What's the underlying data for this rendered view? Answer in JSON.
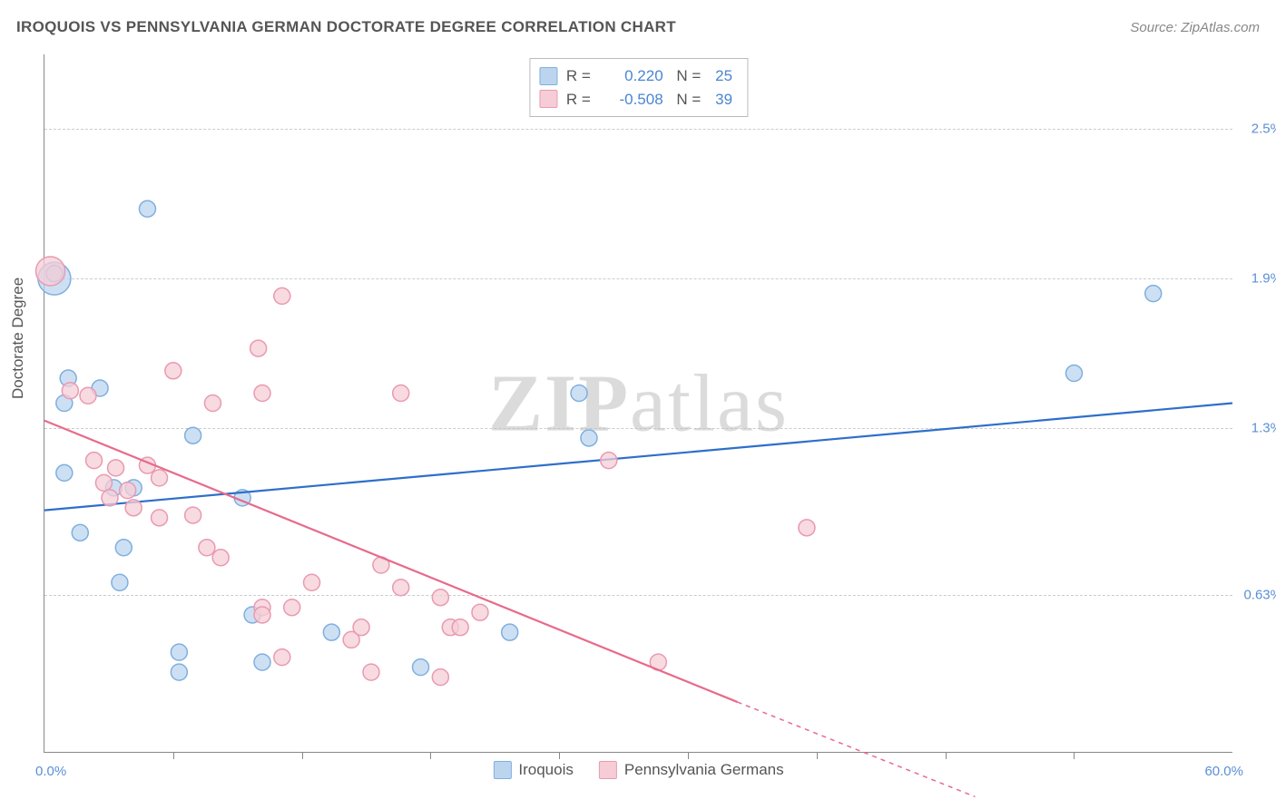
{
  "title": "IROQUOIS VS PENNSYLVANIA GERMAN DOCTORATE DEGREE CORRELATION CHART",
  "source_prefix": "Source: ",
  "source_site": "ZipAtlas.com",
  "watermark_a": "ZIP",
  "watermark_b": "atlas",
  "y_axis_label": "Doctorate Degree",
  "chart": {
    "type": "scatter",
    "background_color": "#ffffff",
    "grid_color": "#cccccc",
    "axis_color": "#888888",
    "xlim": [
      0,
      60
    ],
    "ylim": [
      0,
      2.8
    ],
    "x_ticks": [
      0,
      6.5,
      13,
      19.5,
      26,
      32.5,
      39,
      45.5,
      52
    ],
    "y_ticks": [
      0.63,
      1.3,
      1.9,
      2.5
    ],
    "y_tick_labels": [
      "0.63%",
      "1.3%",
      "1.9%",
      "2.5%"
    ],
    "x_min_label": "0.0%",
    "x_max_label": "60.0%",
    "series": [
      {
        "name": "Iroquois",
        "color_fill": "#bcd5ef",
        "color_stroke": "#7fafdf",
        "line_color": "#2e6fc9",
        "R": "0.220",
        "N": "25",
        "trend": {
          "x1": 0,
          "y1": 0.97,
          "x2": 60,
          "y2": 1.4
        },
        "points": [
          {
            "x": 0.5,
            "y": 1.9,
            "r": 18
          },
          {
            "x": 0.5,
            "y": 1.92
          },
          {
            "x": 5.2,
            "y": 2.18
          },
          {
            "x": 1.2,
            "y": 1.5
          },
          {
            "x": 2.8,
            "y": 1.46
          },
          {
            "x": 1.0,
            "y": 1.4
          },
          {
            "x": 1.0,
            "y": 1.12
          },
          {
            "x": 7.5,
            "y": 1.27
          },
          {
            "x": 56,
            "y": 1.84
          },
          {
            "x": 52,
            "y": 1.52
          },
          {
            "x": 27,
            "y": 1.44
          },
          {
            "x": 27.5,
            "y": 1.26
          },
          {
            "x": 3.5,
            "y": 1.06
          },
          {
            "x": 4.5,
            "y": 1.06
          },
          {
            "x": 10,
            "y": 1.02
          },
          {
            "x": 1.8,
            "y": 0.88
          },
          {
            "x": 4.0,
            "y": 0.82
          },
          {
            "x": 3.8,
            "y": 0.68
          },
          {
            "x": 10.5,
            "y": 0.55
          },
          {
            "x": 6.8,
            "y": 0.4
          },
          {
            "x": 6.8,
            "y": 0.32
          },
          {
            "x": 11,
            "y": 0.36
          },
          {
            "x": 14.5,
            "y": 0.48
          },
          {
            "x": 19,
            "y": 0.34
          },
          {
            "x": 23.5,
            "y": 0.48
          }
        ]
      },
      {
        "name": "Pennsylvania Germans",
        "color_fill": "#f6cdd7",
        "color_stroke": "#e99ab0",
        "line_color": "#e86a8a",
        "R": "-0.508",
        "N": "39",
        "trend": {
          "x1": 0,
          "y1": 1.33,
          "x2": 35,
          "y2": 0.2
        },
        "trend_dash": {
          "x1": 35,
          "y1": 0.2,
          "x2": 47,
          "y2": -0.18
        },
        "points": [
          {
            "x": 0.3,
            "y": 1.93,
            "r": 16
          },
          {
            "x": 12,
            "y": 1.83
          },
          {
            "x": 10.8,
            "y": 1.62
          },
          {
            "x": 6.5,
            "y": 1.53
          },
          {
            "x": 1.3,
            "y": 1.45
          },
          {
            "x": 2.2,
            "y": 1.43
          },
          {
            "x": 8.5,
            "y": 1.4
          },
          {
            "x": 11,
            "y": 1.44
          },
          {
            "x": 18,
            "y": 1.44
          },
          {
            "x": 2.5,
            "y": 1.17
          },
          {
            "x": 3.6,
            "y": 1.14
          },
          {
            "x": 5.2,
            "y": 1.15
          },
          {
            "x": 3.0,
            "y": 1.08
          },
          {
            "x": 4.2,
            "y": 1.05
          },
          {
            "x": 5.8,
            "y": 1.1
          },
          {
            "x": 28.5,
            "y": 1.17
          },
          {
            "x": 7.5,
            "y": 0.95
          },
          {
            "x": 8.9,
            "y": 0.78
          },
          {
            "x": 8.2,
            "y": 0.82
          },
          {
            "x": 11,
            "y": 0.58
          },
          {
            "x": 11,
            "y": 0.55
          },
          {
            "x": 12.5,
            "y": 0.58
          },
          {
            "x": 13.5,
            "y": 0.68
          },
          {
            "x": 12,
            "y": 0.38
          },
          {
            "x": 15.5,
            "y": 0.45
          },
          {
            "x": 16,
            "y": 0.5
          },
          {
            "x": 16.5,
            "y": 0.32
          },
          {
            "x": 17,
            "y": 0.75
          },
          {
            "x": 18,
            "y": 0.66
          },
          {
            "x": 20,
            "y": 0.62
          },
          {
            "x": 20.5,
            "y": 0.5
          },
          {
            "x": 21,
            "y": 0.5
          },
          {
            "x": 22,
            "y": 0.56
          },
          {
            "x": 20,
            "y": 0.3
          },
          {
            "x": 31,
            "y": 0.36
          },
          {
            "x": 38.5,
            "y": 0.9
          },
          {
            "x": 4.5,
            "y": 0.98
          },
          {
            "x": 5.8,
            "y": 0.94
          },
          {
            "x": 3.3,
            "y": 1.02
          }
        ]
      }
    ],
    "marker_radius": 9,
    "marker_opacity": 0.75,
    "line_width": 2.2
  },
  "legend_labels": {
    "R": "R =",
    "N": "N ="
  }
}
